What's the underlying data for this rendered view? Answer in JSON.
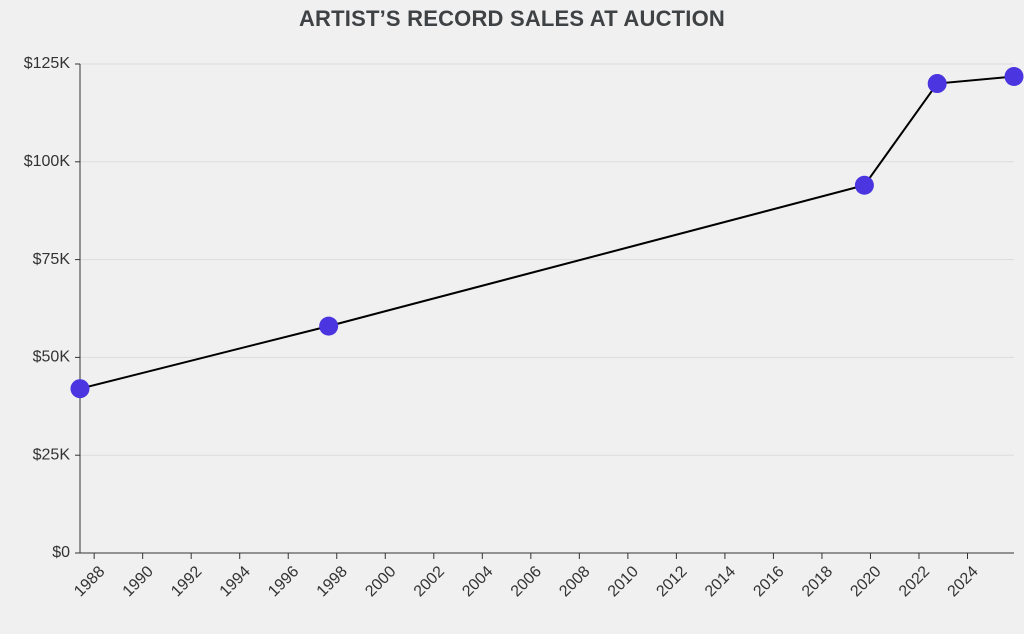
{
  "title": "ARTIST’S RECORD SALES AT AUCTION",
  "chart_data": {
    "type": "line",
    "title": "ARTIST’S RECORD SALES AT AUCTION",
    "xlabel": "",
    "ylabel": "",
    "x": [
      "1987-06",
      "1997-09",
      "2019-10",
      "2022-10",
      "2025-12"
    ],
    "series": [
      {
        "values": [
          42000,
          58000,
          94000,
          120000,
          121800
        ],
        "line_color": "#000000",
        "marker_color": "#4a35e0"
      }
    ],
    "xlim": [
      "1987-06",
      "2025-12"
    ],
    "ylim": [
      0,
      125000
    ],
    "x_ticks": [
      "1988",
      "1990",
      "1992",
      "1994",
      "1996",
      "1998",
      "2000",
      "2002",
      "2004",
      "2006",
      "2008",
      "2010",
      "2012",
      "2014",
      "2016",
      "2018",
      "2020",
      "2022",
      "2024"
    ],
    "y_ticks": [
      0,
      25000,
      50000,
      75000,
      100000,
      125000
    ],
    "y_tick_labels": [
      "$0",
      "$25K",
      "$50K",
      "$75K",
      "$100K",
      "$125K"
    ],
    "grid": true,
    "legend": "none"
  }
}
